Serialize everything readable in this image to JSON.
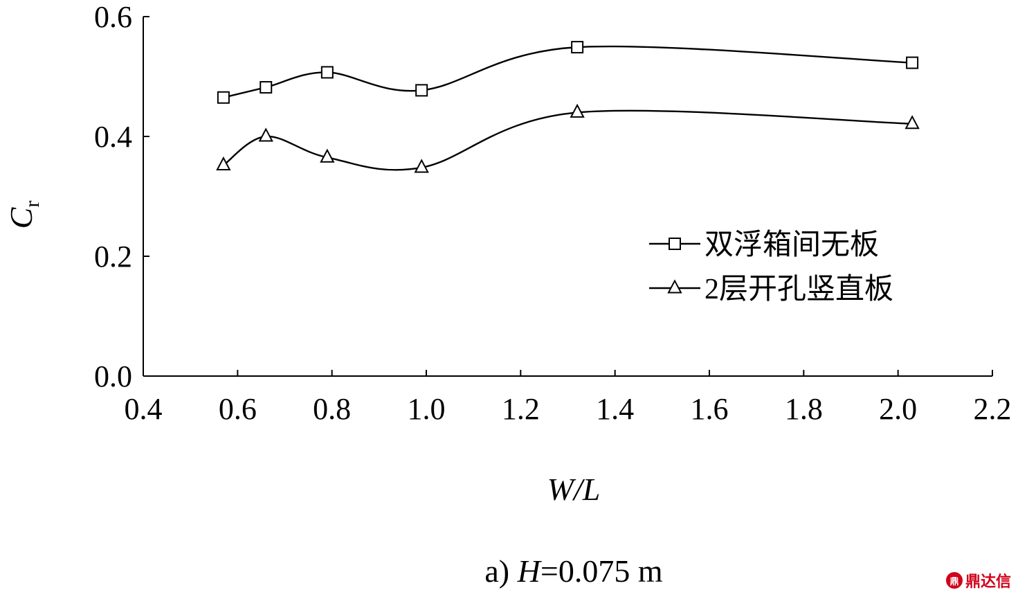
{
  "chart_data": {
    "type": "line",
    "x": [
      0.57,
      0.66,
      0.79,
      0.99,
      1.32,
      2.03
    ],
    "series": [
      {
        "name": "双浮箱间无板",
        "marker": "square",
        "values": [
          0.465,
          0.482,
          0.507,
          0.477,
          0.549,
          0.523
        ]
      },
      {
        "name": "2层开孔竖直板",
        "marker": "triangle",
        "values": [
          0.352,
          0.4,
          0.365,
          0.348,
          0.44,
          0.421
        ]
      }
    ],
    "xlabel": "W/L",
    "ylabel": "C",
    "ylabel_subscript": "r",
    "xlim": [
      0.4,
      2.2
    ],
    "ylim": [
      0.0,
      0.6
    ],
    "x_ticks": [
      "0.4",
      "0.6",
      "0.8",
      "1.0",
      "1.2",
      "1.4",
      "1.6",
      "1.8",
      "2.0",
      "2.2"
    ],
    "y_ticks": [
      "0.0",
      "0.2",
      "0.4",
      "0.6"
    ],
    "grid": false,
    "legend_position": "right",
    "line_color": "#000000",
    "caption": {
      "prefix": "a) ",
      "var": "H",
      "rest": "=0.075 m"
    }
  },
  "watermark": {
    "icon": "seal-icon",
    "logo_text": "鼎",
    "text": "鼎达信"
  }
}
